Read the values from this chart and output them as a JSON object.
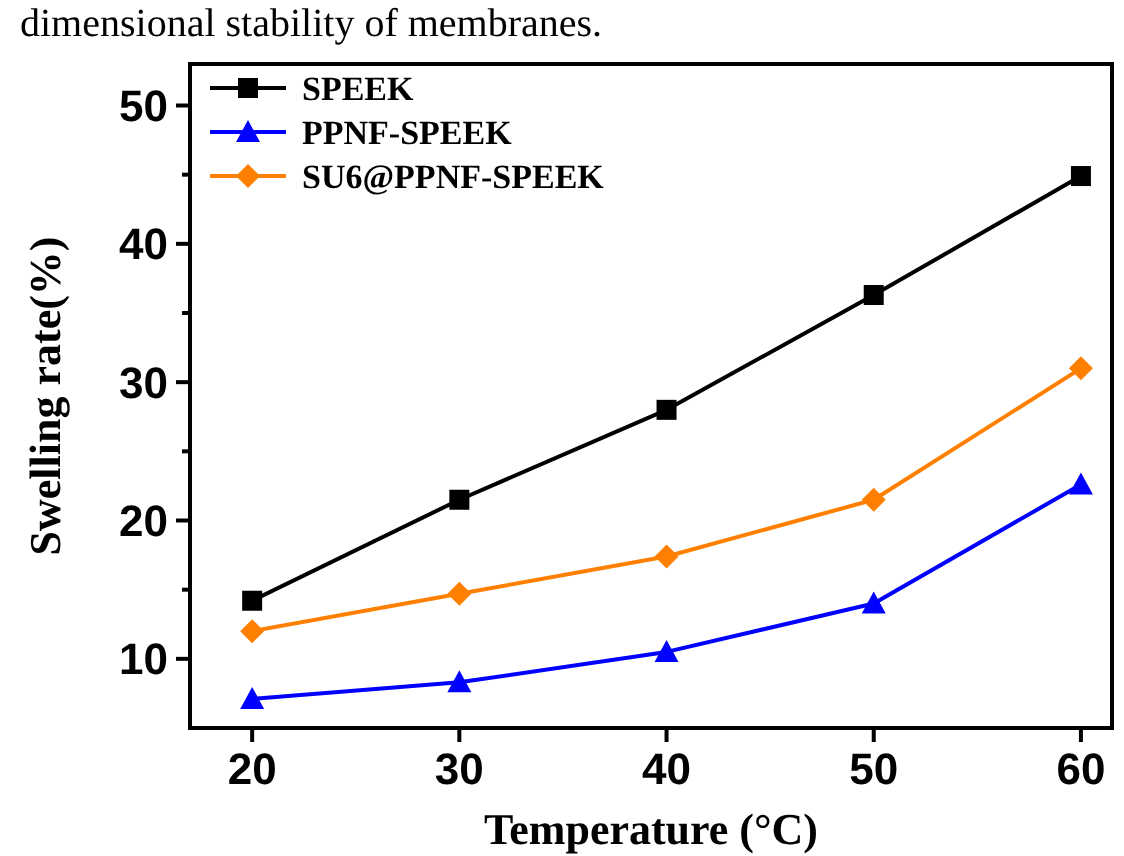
{
  "chart_data": {
    "type": "line",
    "xlabel": "Temperature (°C)",
    "ylabel": "Swelling rate(%)",
    "annotations": [
      "dimensional stability of membranes."
    ],
    "x": [
      20,
      30,
      40,
      50,
      60
    ],
    "series": [
      {
        "name": "SPEEK",
        "color": "#000000",
        "marker": "square",
        "values": [
          14.2,
          21.5,
          28,
          36.3,
          44.9
        ]
      },
      {
        "name": "PPNF-SPEEK",
        "color": "#0000ff",
        "marker": "triangle",
        "values": [
          7.1,
          8.3,
          10.5,
          14,
          22.6
        ]
      },
      {
        "name": "SU6@PPNF-SPEEK",
        "color": "#ff8000",
        "marker": "diamond",
        "values": [
          12,
          14.7,
          17.4,
          21.5,
          31
        ]
      }
    ],
    "xlim": [
      17,
      61.5
    ],
    "xticks": [
      20,
      30,
      40,
      50,
      60
    ],
    "ylim": [
      5,
      53
    ],
    "yticks": [
      10,
      {
        "value": 15,
        "label": null
      },
      20,
      {
        "value": 25,
        "label": null
      },
      30,
      {
        "value": 35,
        "label": null
      },
      40,
      {
        "value": 45,
        "label": null
      },
      50
    ],
    "legend": "top left",
    "grid": false,
    "line_style": "solid"
  }
}
